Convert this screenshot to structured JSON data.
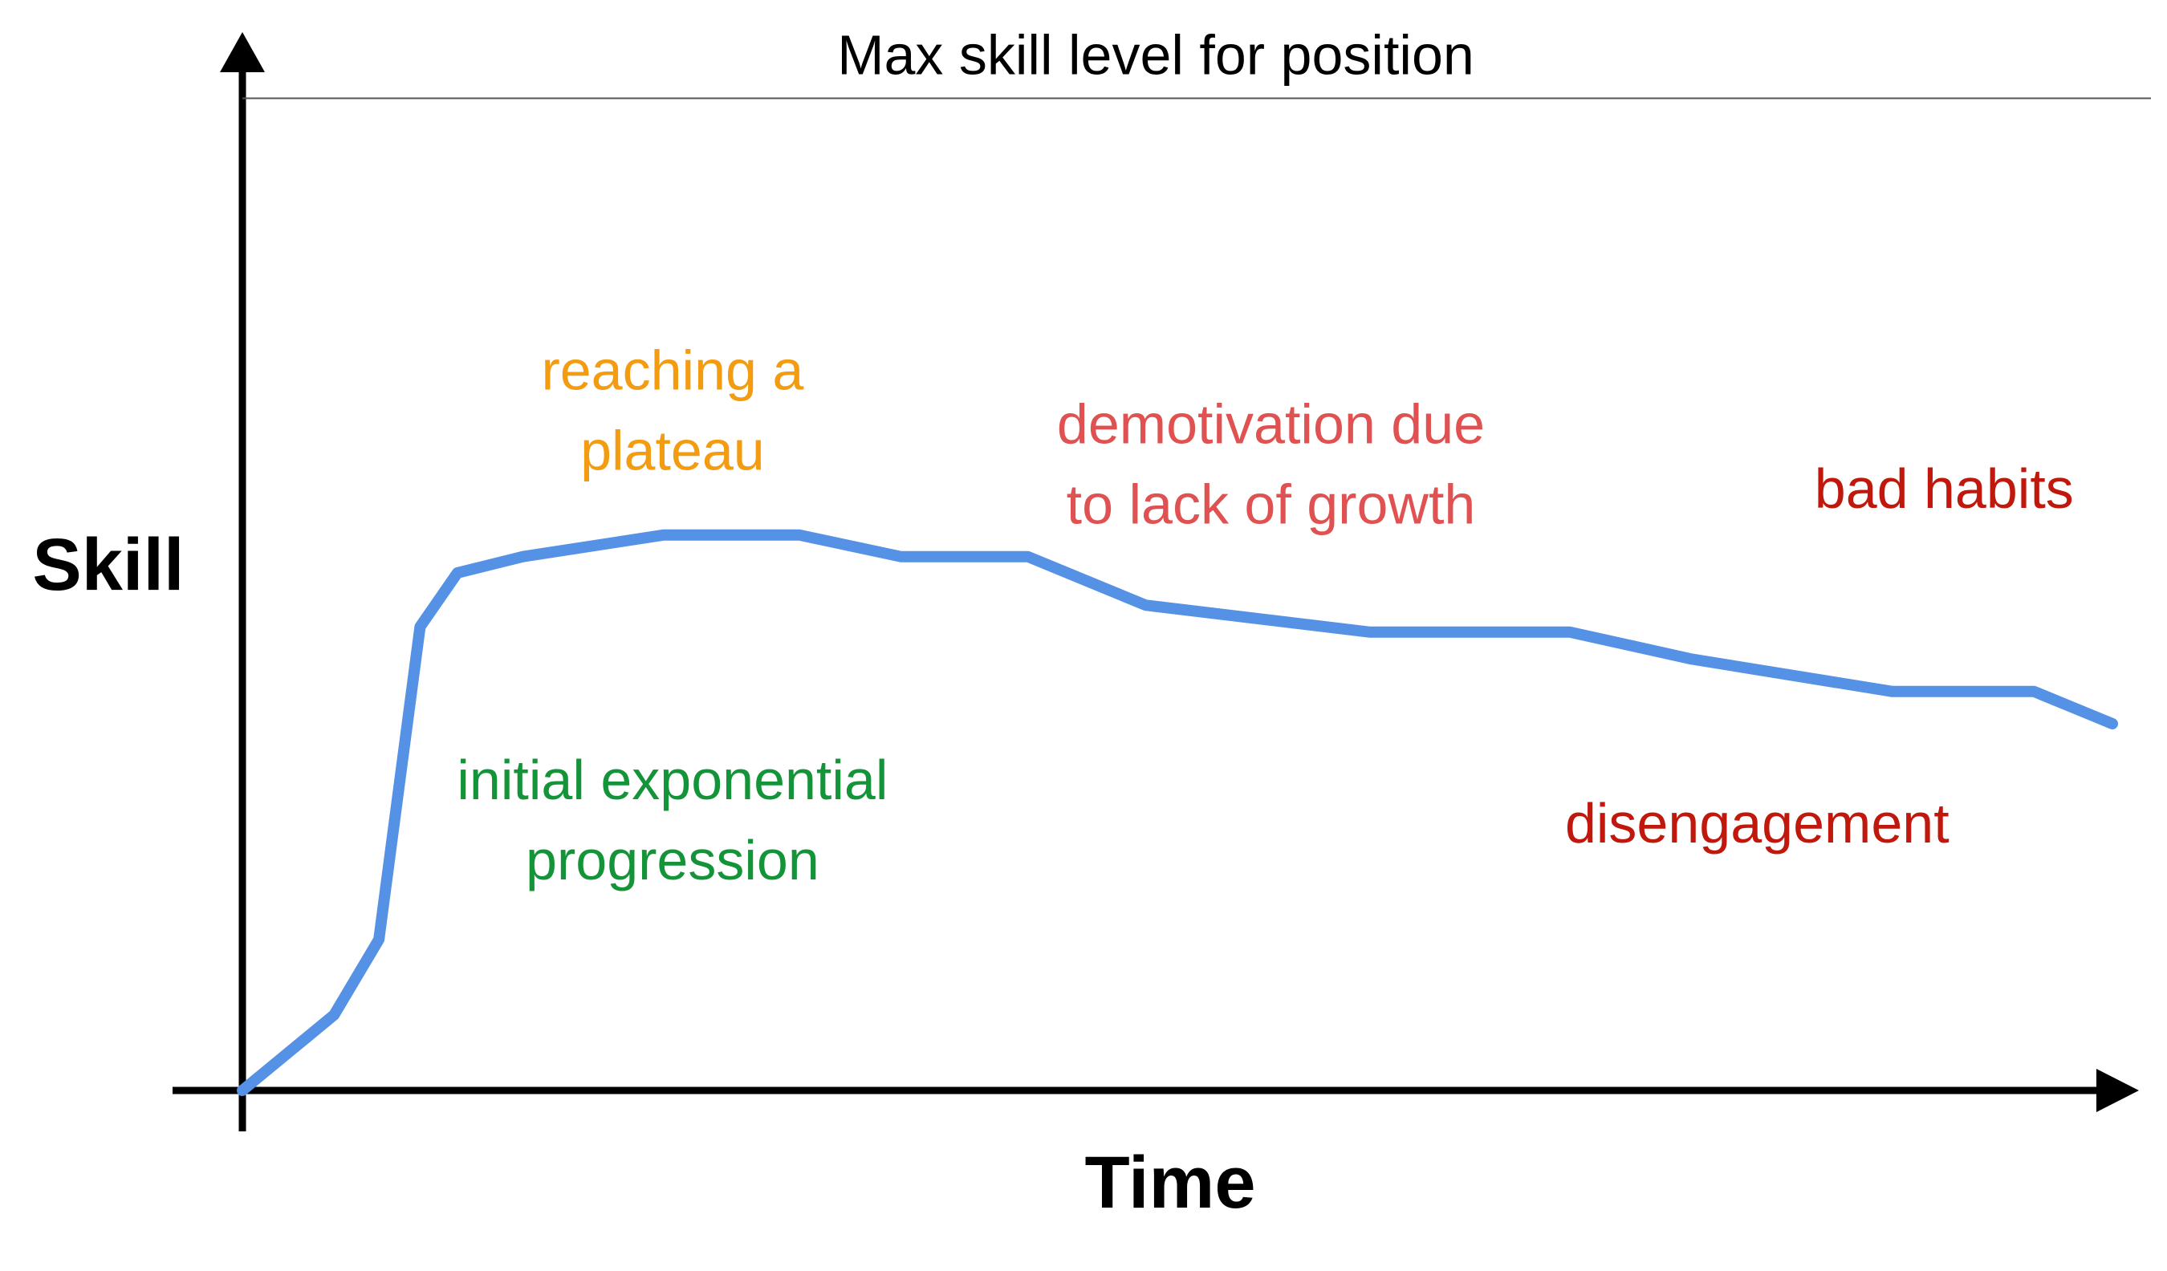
{
  "chart_data": {
    "type": "line",
    "title": "",
    "xlabel": "Time",
    "ylabel": "Skill",
    "xlim": [
      0,
      100
    ],
    "ylim": [
      0,
      100
    ],
    "grid": false,
    "legend": "none",
    "reference_line": {
      "label": "Max skill level for position",
      "y": 92
    },
    "series": [
      {
        "color": "#5592e6",
        "points": [
          {
            "x": 0,
            "y": 0
          },
          {
            "x": 4.9,
            "y": 7
          },
          {
            "x": 7.3,
            "y": 14
          },
          {
            "x": 9.5,
            "y": 43
          },
          {
            "x": 11.5,
            "y": 48
          },
          {
            "x": 15,
            "y": 49.5
          },
          {
            "x": 22.5,
            "y": 51.5
          },
          {
            "x": 29.8,
            "y": 51.5
          },
          {
            "x": 35.2,
            "y": 49.5
          },
          {
            "x": 42,
            "y": 49.5
          },
          {
            "x": 48.3,
            "y": 45
          },
          {
            "x": 60.3,
            "y": 42.5
          },
          {
            "x": 71,
            "y": 42.5
          },
          {
            "x": 77.5,
            "y": 40
          },
          {
            "x": 88.2,
            "y": 37
          },
          {
            "x": 95.8,
            "y": 37
          },
          {
            "x": 100,
            "y": 34
          }
        ]
      }
    ],
    "annotations": [
      {
        "lines": [
          "reaching a",
          "plateau"
        ],
        "color": "#f39c12",
        "x": 23,
        "y": 65
      },
      {
        "lines": [
          "demotivation due",
          "to lack of growth"
        ],
        "color": "#e05252",
        "x": 55,
        "y": 60
      },
      {
        "lines": [
          "bad habits"
        ],
        "color": "#c0180c",
        "x": 91,
        "y": 54
      },
      {
        "lines": [
          "initial exponential",
          "progression"
        ],
        "color": "#149438",
        "x": 23,
        "y": 27
      },
      {
        "lines": [
          "disengagement"
        ],
        "color": "#c0180c",
        "x": 81,
        "y": 23
      }
    ]
  }
}
